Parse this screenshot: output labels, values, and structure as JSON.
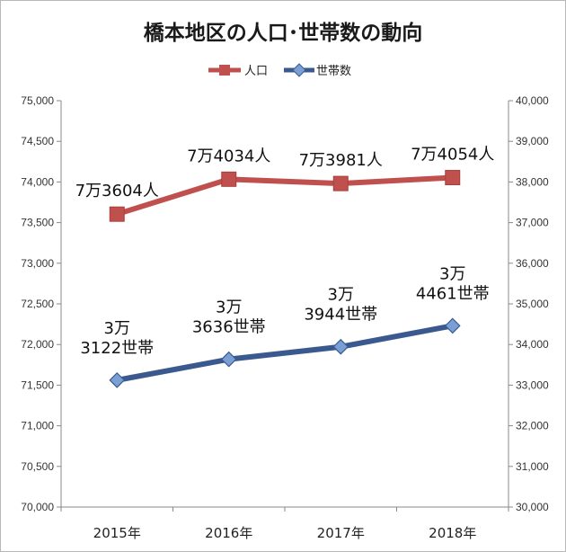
{
  "chart_data": {
    "type": "line",
    "title": "橋本地区の人口･世帯数の動向",
    "categories": [
      "2015年",
      "2016年",
      "2017年",
      "2018年"
    ],
    "series": [
      {
        "name": "人口",
        "axis": "left",
        "color": "#c0504d",
        "marker": "square",
        "values": [
          73604,
          74034,
          73981,
          74054
        ],
        "labels": [
          [
            "7万3604人"
          ],
          [
            "7万4034人"
          ],
          [
            "7万3981人"
          ],
          [
            "7万4054人"
          ]
        ]
      },
      {
        "name": "世帯数",
        "axis": "right",
        "color": "#3a5a8f",
        "marker_color": "#7a9fd4",
        "marker": "diamond",
        "values": [
          33122,
          33636,
          33944,
          34461
        ],
        "labels": [
          [
            "3万",
            "3122世帯"
          ],
          [
            "3万",
            "3636世帯"
          ],
          [
            "3万",
            "3944世帯"
          ],
          [
            "3万",
            "4461世帯"
          ]
        ]
      }
    ],
    "y_left": {
      "min": 70000,
      "max": 75000,
      "ticks": [
        "70,000",
        "70,500",
        "71,000",
        "71,500",
        "72,000",
        "72,500",
        "73,000",
        "73,500",
        "74,000",
        "74,500",
        "75,000"
      ]
    },
    "y_right": {
      "min": 30000,
      "max": 40000,
      "ticks": [
        "30,000",
        "31,000",
        "32,000",
        "33,000",
        "34,000",
        "35,000",
        "36,000",
        "37,000",
        "38,000",
        "39,000",
        "40,000"
      ]
    },
    "grid": false,
    "legend": "top-center"
  }
}
